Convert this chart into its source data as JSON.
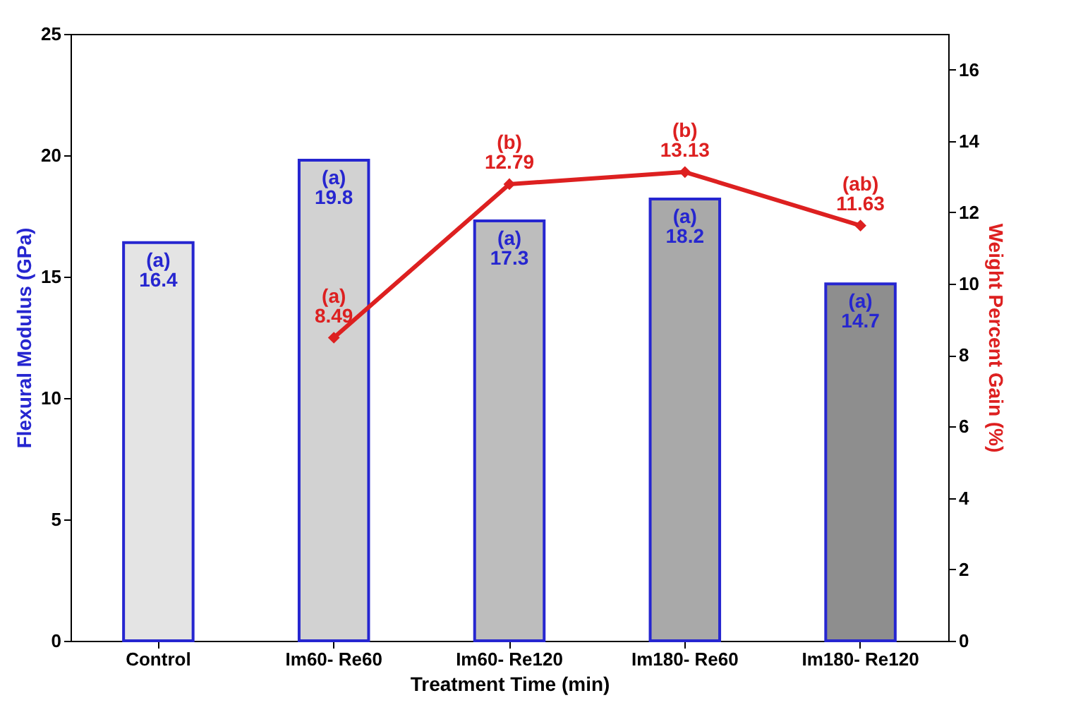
{
  "chart_data": {
    "type": "bar",
    "xlabel": "Treatment Time (min)",
    "ylabel": "Flexural Modulus (GPa)",
    "y2label": "Weight Percent Gain (%)",
    "categories": [
      "Control",
      "Im60- Re60",
      "Im60- Re120",
      "Im180- Re60",
      "Im180- Re120"
    ],
    "series": [
      {
        "colors": [
          "#e4e4e4",
          "#d2d2d2",
          "#bdbdbd",
          "#a9a9a9",
          "#8e8e8e"
        ],
        "values": [
          16.4,
          19.8,
          17.3,
          18.2,
          14.7
        ],
        "value_labels": [
          "(a)\n16.4",
          "(a)\n19.8",
          "(a)\n17.3",
          "(a)\n18.2",
          "(a)\n14.7"
        ]
      },
      {
        "type": "line",
        "axis": "y2",
        "color": "#dd2020",
        "marker": "diamond",
        "values": [
          null,
          8.49,
          12.79,
          13.13,
          11.63
        ],
        "value_labels": [
          null,
          "(a)\n8.49",
          "(b)\n12.79",
          "(b)\n13.13",
          "(ab)\n11.63"
        ]
      }
    ],
    "ylim": [
      0,
      25
    ],
    "yticks": [
      0,
      5,
      10,
      15,
      20,
      25
    ],
    "y2lim": [
      0,
      17
    ],
    "y2ticks": [
      0,
      2,
      4,
      6,
      8,
      10,
      12,
      14,
      16
    ],
    "grid": false,
    "legend": false
  }
}
